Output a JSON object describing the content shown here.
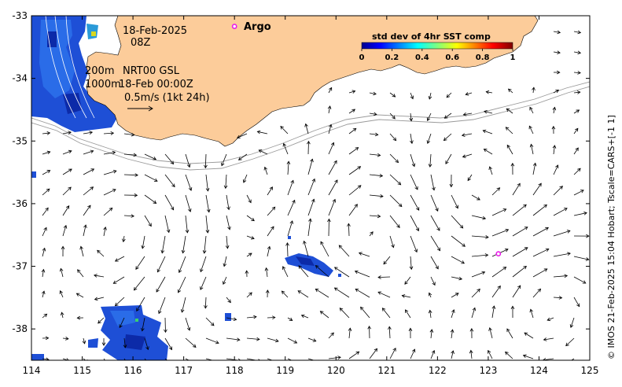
{
  "map": {
    "x_ticks": [
      "114",
      "115",
      "116",
      "117",
      "118",
      "119",
      "120",
      "121",
      "122",
      "123",
      "124",
      "125"
    ],
    "y_ticks": [
      "-33",
      "-34",
      "-35",
      "-36",
      "-37",
      "-38"
    ],
    "lon_range": [
      114,
      125
    ],
    "lat_range": [
      -38.5,
      -33
    ],
    "land_color": "#fccc9a",
    "argo_color": "#e81ee8"
  },
  "annotations": {
    "date": "18-Feb-2025",
    "time": "08Z",
    "iso_200": "200m",
    "iso_1000": "1000m",
    "product": "NRT00 GSL",
    "product_time": "18-Feb 00:00Z",
    "scale": "0.5m/s (1kt 24h)",
    "argo_label": "Argo"
  },
  "colorbar": {
    "title": "std dev of 4hr SST comp",
    "ticks": [
      "0",
      "0.2",
      "0.4",
      "0.6",
      "0.8",
      "1"
    ],
    "colormap": "jet"
  },
  "credit": "© IMOS 21-Feb-2025 15:04 Hobart; Tscale=CARS+[-1 1]",
  "argo_floats": [
    {
      "lon": 118.0,
      "lat": -33.17,
      "label": "Argo"
    },
    {
      "lon": 123.2,
      "lat": -36.8,
      "label": ""
    }
  ]
}
